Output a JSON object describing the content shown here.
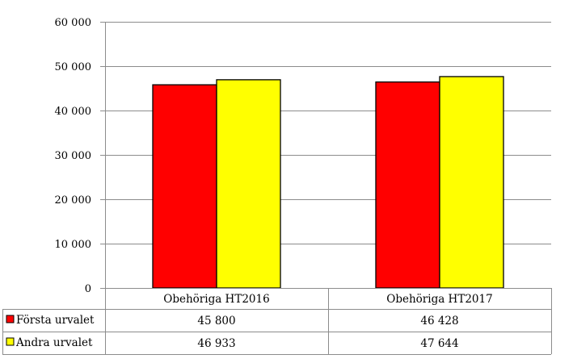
{
  "chart_data": {
    "type": "bar",
    "categories": [
      "Obehöriga HT2016",
      "Obehöriga HT2017"
    ],
    "series": [
      {
        "name": "Första urvalet",
        "color": "#ff0000",
        "values": [
          45800,
          46428
        ],
        "labels": [
          "45 800",
          "46 428"
        ]
      },
      {
        "name": "Andra urvalet",
        "color": "#ffff00",
        "values": [
          46933,
          47644
        ],
        "labels": [
          "46 933",
          "47 644"
        ]
      }
    ],
    "ylim": [
      0,
      60000
    ],
    "yticks": [
      0,
      10000,
      20000,
      30000,
      40000,
      50000,
      60000
    ],
    "ytick_labels": [
      "0",
      "10 000",
      "20 000",
      "30 000",
      "40 000",
      "50 000",
      "60 000"
    ],
    "grid": true,
    "legend": "data-table-left",
    "data_table": true
  }
}
